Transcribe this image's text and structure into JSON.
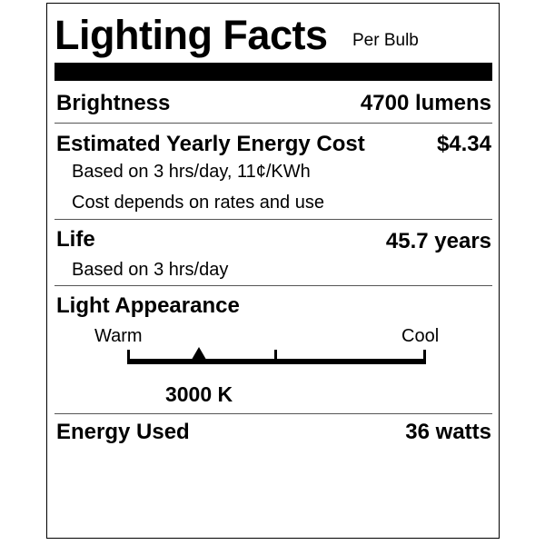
{
  "header": {
    "title": "Lighting Facts",
    "subtitle": "Per Bulb"
  },
  "brightness": {
    "label": "Brightness",
    "value": "4700 lumens"
  },
  "energy_cost": {
    "label": "Estimated Yearly Energy Cost",
    "value": "$4.34",
    "note1": "Based on 3 hrs/day, 11¢/KWh",
    "note2": "Cost depends on rates and use"
  },
  "life": {
    "label": "Life",
    "value": "45.7 years",
    "note": "Based on 3 hrs/day"
  },
  "light_appearance": {
    "label": "Light Appearance",
    "warm_label": "Warm",
    "cool_label": "Cool",
    "value": "3000 K",
    "marker_position_fraction": 0.24
  },
  "energy_used": {
    "label": "Energy Used",
    "value": "36 watts"
  }
}
